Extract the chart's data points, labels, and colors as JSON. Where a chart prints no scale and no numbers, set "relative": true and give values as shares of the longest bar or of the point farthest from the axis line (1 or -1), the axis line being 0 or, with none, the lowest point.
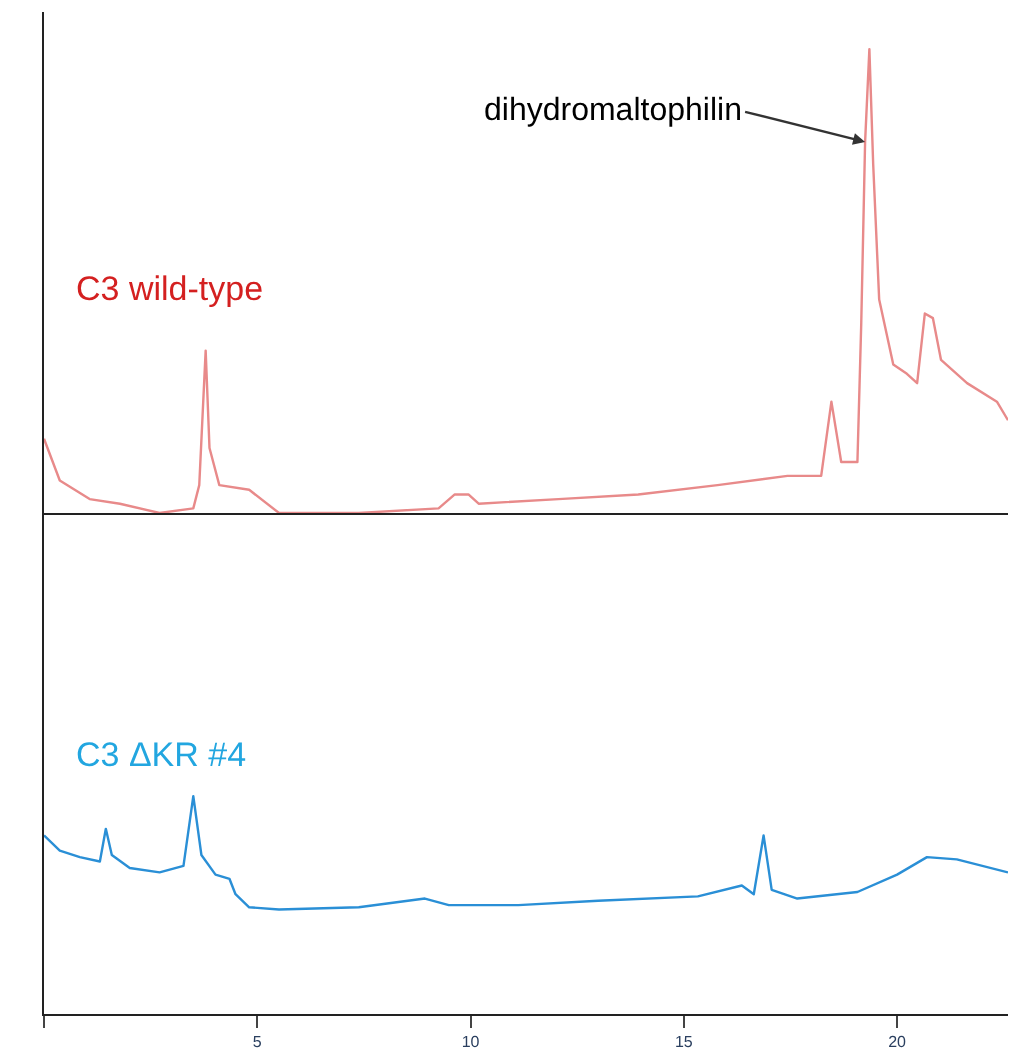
{
  "chart_data": [
    {
      "type": "line",
      "relative": true,
      "xlim": [
        0,
        22.6
      ],
      "tick_labels": false,
      "annotations": [
        {
          "text": "dihydromaltophilin",
          "x": 19.25,
          "y": 0.8
        }
      ],
      "series": [
        {
          "name": "C3 wild-type",
          "color": "#e88a8a",
          "x": [
            0,
            0.37,
            1.07,
            1.78,
            2.71,
            3.5,
            3.64,
            3.79,
            3.88,
            4.11,
            4.81,
            5.51,
            7.38,
            9.25,
            9.63,
            9.95,
            10.19,
            12.06,
            13.93,
            15.79,
            17.43,
            18.22,
            18.46,
            18.69,
            19.07,
            19.16,
            19.25,
            19.35,
            19.44,
            19.58,
            19.91,
            20.23,
            20.47,
            20.65,
            20.84,
            21.03,
            21.64,
            22.34,
            22.6
          ],
          "values": [
            0.16,
            0.07,
            0.03,
            0.02,
            0.0,
            0.01,
            0.06,
            0.35,
            0.14,
            0.06,
            0.05,
            0.0,
            0.0,
            0.01,
            0.04,
            0.04,
            0.02,
            0.03,
            0.04,
            0.06,
            0.08,
            0.08,
            0.24,
            0.11,
            0.11,
            0.41,
            0.8,
            1.0,
            0.75,
            0.46,
            0.32,
            0.3,
            0.28,
            0.43,
            0.42,
            0.33,
            0.28,
            0.24,
            0.2
          ]
        }
      ]
    },
    {
      "type": "line",
      "relative": true,
      "xlim": [
        0,
        22.6
      ],
      "xticks": [
        {
          "value": 0,
          "label": null
        },
        5,
        10,
        15,
        20
      ],
      "tick_labels": "x",
      "series": [
        {
          "name": "C3 ΔKR #4",
          "color": "#2a8fd6",
          "x": [
            0,
            0.37,
            0.84,
            1.31,
            1.45,
            1.59,
            2.01,
            2.71,
            3.27,
            3.5,
            3.69,
            4.02,
            4.35,
            4.49,
            4.81,
            5.51,
            7.38,
            8.93,
            9.49,
            11.12,
            12.99,
            15.33,
            16.36,
            16.64,
            16.87,
            17.06,
            17.66,
            19.07,
            20.0,
            20.7,
            21.4,
            22.6
          ],
          "values": [
            0.82,
            0.75,
            0.72,
            0.7,
            0.85,
            0.73,
            0.67,
            0.65,
            0.68,
            1.0,
            0.73,
            0.64,
            0.62,
            0.55,
            0.49,
            0.48,
            0.49,
            0.53,
            0.5,
            0.5,
            0.52,
            0.54,
            0.59,
            0.55,
            0.82,
            0.57,
            0.53,
            0.56,
            0.64,
            0.72,
            0.71,
            0.65
          ]
        }
      ]
    }
  ]
}
